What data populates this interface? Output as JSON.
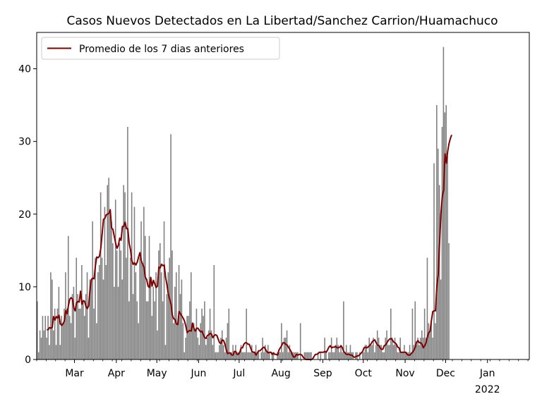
{
  "chart_data": {
    "type": "bar",
    "title": "Casos Nuevos Detectados en La Libertad/Sanchez Carrion/Huamachuco",
    "xlabel": "",
    "ylabel": "",
    "ylim": [
      0,
      45
    ],
    "yticks": [
      0,
      10,
      20,
      30,
      40
    ],
    "x_start": "2021-02-01",
    "x_end": "2022-01-31",
    "xticks": [
      {
        "date": "2021-03-01",
        "label": "Mar"
      },
      {
        "date": "2021-04-01",
        "label": "Apr"
      },
      {
        "date": "2021-05-01",
        "label": "May"
      },
      {
        "date": "2021-06-01",
        "label": "Jun"
      },
      {
        "date": "2021-07-01",
        "label": "Jul"
      },
      {
        "date": "2021-08-01",
        "label": "Aug"
      },
      {
        "date": "2021-09-01",
        "label": "Sep"
      },
      {
        "date": "2021-10-01",
        "label": "Oct"
      },
      {
        "date": "2021-11-01",
        "label": "Nov"
      },
      {
        "date": "2021-12-01",
        "label": "Dec"
      },
      {
        "date": "2022-01-01",
        "label": "Jan",
        "sublabel": "2022"
      }
    ],
    "bar_color": "#808080",
    "line_color": "#800000",
    "legend": {
      "placement": "upper-left",
      "entries": [
        "Promedio de los 7 dias anteriores"
      ]
    },
    "grid": false,
    "series": [
      {
        "type": "bar",
        "values": [
          8,
          1,
          4,
          3,
          6,
          4,
          6,
          3,
          6,
          2,
          12,
          11,
          4,
          7,
          2,
          7,
          10,
          2,
          6,
          5,
          7,
          12,
          7,
          17,
          6,
          5,
          9,
          10,
          3,
          14,
          9,
          7,
          7,
          13,
          8,
          6,
          9,
          12,
          3,
          11,
          11,
          19,
          7,
          14,
          5,
          12,
          13,
          23,
          14,
          11,
          21,
          13,
          24,
          25,
          20,
          19,
          16,
          10,
          22,
          15,
          10,
          16,
          15,
          11,
          24,
          23,
          14,
          32,
          8,
          14,
          23,
          9,
          21,
          12,
          8,
          5,
          14,
          19,
          13,
          21,
          17,
          8,
          8,
          17,
          11,
          6,
          10,
          8,
          12,
          4,
          15,
          16,
          12,
          8,
          19,
          2,
          9,
          12,
          14,
          31,
          15,
          5,
          10,
          12,
          5,
          13,
          9,
          11,
          5,
          1,
          3,
          6,
          6,
          8,
          12,
          5,
          5,
          4,
          7,
          3,
          2,
          5,
          7,
          6,
          8,
          2,
          3,
          4,
          7,
          4,
          2,
          13,
          1,
          1,
          1,
          2,
          3,
          4,
          2,
          1,
          3,
          5,
          7,
          1,
          1,
          2,
          1,
          2,
          1,
          1,
          1,
          2,
          1,
          1,
          1,
          7,
          1,
          1,
          1,
          2,
          1,
          1,
          2,
          1,
          1,
          0,
          1,
          3,
          1,
          2,
          1,
          2,
          1,
          0,
          1,
          1,
          0,
          0,
          1,
          1,
          1,
          5,
          1,
          3,
          3,
          4,
          1,
          2,
          1,
          1,
          1,
          1,
          1,
          1,
          0,
          5,
          0,
          0,
          1,
          1,
          1,
          1,
          1,
          1,
          0,
          0,
          0,
          0,
          1,
          0,
          1,
          0,
          0,
          3,
          1,
          0,
          1,
          1,
          3,
          1,
          1,
          2,
          3,
          2,
          1,
          2,
          1,
          8,
          1,
          2,
          1,
          1,
          2,
          1,
          1,
          0,
          1,
          1,
          0,
          1,
          0,
          1,
          1,
          2,
          2,
          1,
          3,
          2,
          2,
          3,
          1,
          2,
          4,
          3,
          2,
          2,
          1,
          1,
          3,
          4,
          2,
          2,
          7,
          3,
          2,
          3,
          2,
          1,
          1,
          3,
          1,
          1,
          2,
          1,
          1,
          1,
          2,
          1,
          7,
          2,
          8,
          2,
          3,
          2,
          3,
          4,
          3,
          7,
          3,
          14,
          5,
          4,
          5,
          3,
          27,
          5,
          35,
          29,
          24,
          11,
          32,
          43,
          34,
          35,
          28,
          16
        ]
      },
      {
        "type": "line",
        "name": "Promedio de los 7 dias anteriores",
        "start_index": 7,
        "values": [
          4.1,
          4.1,
          4.4,
          4.3,
          4.4,
          5.9,
          5.4,
          5.9,
          5.7,
          6.1,
          4.9,
          4.7,
          4.9,
          5.3,
          6.7,
          6.3,
          7.4,
          8.3,
          8.5,
          8.3,
          7.1,
          6.7,
          7.8,
          8.0,
          7.9,
          9.4,
          7.6,
          8.1,
          8.0,
          7.3,
          7.0,
          7.4,
          9.6,
          11.0,
          11.2,
          11.1,
          12.9,
          14.1,
          14.0,
          14.2,
          15.3,
          17.3,
          19.3,
          19.4,
          19.9,
          20.0,
          20.1,
          20.6,
          18.1,
          17.9,
          16.9,
          16.0,
          15.3,
          15.7,
          16.7,
          16.4,
          18.3,
          18.3,
          18.9,
          18.0,
          18.0,
          16.0,
          15.1,
          13.6,
          13.1,
          13.3,
          13.0,
          13.4,
          14.1,
          14.7,
          13.6,
          13.1,
          12.7,
          11.3,
          11.0,
          10.1,
          9.9,
          11.3,
          10.1,
          10.9,
          10.4,
          9.9,
          10.1,
          12.7,
          12.6,
          13.1,
          12.9,
          13.0,
          11.3,
          10.3,
          9.0,
          8.3,
          7.6,
          6.1,
          5.6,
          5.5,
          4.9,
          4.8,
          6.6,
          6.3,
          6.0,
          5.7,
          5.3,
          4.6,
          3.7,
          3.9,
          4.0,
          3.9,
          5.0,
          4.3,
          3.9,
          4.3,
          4.3,
          4.0,
          3.8,
          3.9,
          3.4,
          3.0,
          2.9,
          3.3,
          3.4,
          3.6,
          3.5,
          3.0,
          3.3,
          3.4,
          3.3,
          2.8,
          2.3,
          2.2,
          2.7,
          2.6,
          2.1,
          1.3,
          0.8,
          0.9,
          0.9,
          0.6,
          0.6,
          1.1,
          1.1,
          0.7,
          0.7,
          1.0,
          1.6,
          1.6,
          2.1,
          2.3,
          2.3,
          2.1,
          2.1,
          1.6,
          1.1,
          1.0,
          1.0,
          0.6,
          0.9,
          1.2,
          1.2,
          1.4,
          1.6,
          1.7,
          1.4,
          1.1,
          0.9,
          1.0,
          1.0,
          0.7,
          0.9,
          0.7,
          0.7,
          0.6,
          1.3,
          1.6,
          1.9,
          2.3,
          2.3,
          2.1,
          2.0,
          1.7,
          1.4,
          1.1,
          0.6,
          0.3,
          0.4,
          0.7,
          0.6,
          0.7,
          0.7,
          0.6,
          0.3,
          0.1,
          0.0,
          0.0,
          0.0,
          0.0,
          0.0,
          0.1,
          0.4,
          0.7,
          0.7,
          0.8,
          1.0,
          1.0,
          1.0,
          1.0,
          1.1,
          1.0,
          1.3,
          1.7,
          1.9,
          1.6,
          1.7,
          1.7,
          1.8,
          1.6,
          1.6,
          1.7,
          1.9,
          1.6,
          1.1,
          0.9,
          0.7,
          0.7,
          0.7,
          0.6,
          0.6,
          0.4,
          0.3,
          0.4,
          0.5,
          0.5,
          0.7,
          0.9,
          1.1,
          1.6,
          1.7,
          1.6,
          1.7,
          1.9,
          2.1,
          2.4,
          2.6,
          2.7,
          2.3,
          2.0,
          1.9,
          1.6,
          1.4,
          1.4,
          1.9,
          2.0,
          2.3,
          2.6,
          2.8,
          2.9,
          2.7,
          2.4,
          2.3,
          2.1,
          1.7,
          1.6,
          1.0,
          1.0,
          1.0,
          1.0,
          1.0,
          0.7,
          0.6,
          0.6,
          0.8,
          1.0,
          1.3,
          1.7,
          2.4,
          2.6,
          2.3,
          2.3,
          2.1,
          1.6,
          1.9,
          2.3,
          3.1,
          3.7,
          3.9,
          5.4,
          6.6,
          6.7,
          6.7,
          10.1,
          11.6,
          15.9,
          20.0,
          22.4,
          23.3,
          28.3,
          27.0,
          28.6,
          29.7,
          30.4,
          30.9
        ]
      }
    ]
  }
}
